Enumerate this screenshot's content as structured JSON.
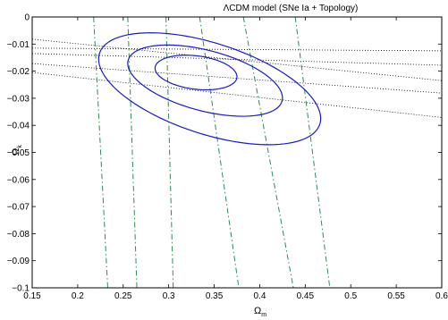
{
  "chart_data": {
    "type": "line",
    "title": "ΛCDM model (SNe Ia + Topology)",
    "xlabel": "Ω",
    "xlabel_sub": "m",
    "ylabel": "Ω",
    "ylabel_sub": "k",
    "xlim": [
      0.15,
      0.6
    ],
    "ylim": [
      -0.1,
      0
    ],
    "xticks": [
      0.15,
      0.2,
      0.25,
      0.3,
      0.35,
      0.4,
      0.45,
      0.5,
      0.55,
      0.6
    ],
    "xtick_labels": [
      "0.15",
      "0.2",
      "0.25",
      "0.3",
      "0.35",
      "0.4",
      "0.45",
      "0.5",
      "0.55",
      "0.6"
    ],
    "yticks": [
      0,
      -0.01,
      -0.02,
      -0.03,
      -0.04,
      -0.05,
      -0.06,
      -0.07,
      -0.08,
      -0.09,
      -0.1
    ],
    "ytick_labels": [
      "0",
      "−0.01",
      "−0.02",
      "−0.03",
      "−0.04",
      "−0.05",
      "−0.06",
      "−0.07",
      "−0.08",
      "−0.09",
      "−0.1"
    ],
    "grid": false,
    "colors": {
      "contour": "#1a1acc",
      "dashdot": "#2e8b57",
      "dotted": "#000000",
      "frame": "#000000"
    },
    "contours": [
      {
        "center": [
          0.33,
          -0.0205
        ],
        "rx": 0.045,
        "ry": 0.0062,
        "tilt": -0.035
      },
      {
        "center": [
          0.34,
          -0.0235
        ],
        "rx": 0.085,
        "ry": 0.0115,
        "tilt": -0.075
      },
      {
        "center": [
          0.345,
          -0.0265
        ],
        "rx": 0.122,
        "ry": 0.0175,
        "tilt": -0.09
      }
    ],
    "dashdot_lines": [
      {
        "x_top": 0.2175,
        "x_bottom": 0.233
      },
      {
        "x_top": 0.255,
        "x_bottom": 0.265
      },
      {
        "x_top": 0.297,
        "x_bottom": 0.305
      },
      {
        "x_top": 0.334,
        "x_bottom": 0.377
      },
      {
        "x_top": 0.382,
        "x_bottom": 0.437
      },
      {
        "x_top": 0.439,
        "x_bottom": 0.477
      }
    ],
    "dotted_lines": [
      {
        "y_left": -0.0082,
        "y_right": -0.0235
      },
      {
        "y_left": -0.0115,
        "y_right": -0.0125
      },
      {
        "y_left": -0.0135,
        "y_right": -0.0178
      },
      {
        "y_left": -0.0172,
        "y_right": -0.0281
      },
      {
        "y_left": -0.0205,
        "y_right": -0.0371
      }
    ]
  }
}
